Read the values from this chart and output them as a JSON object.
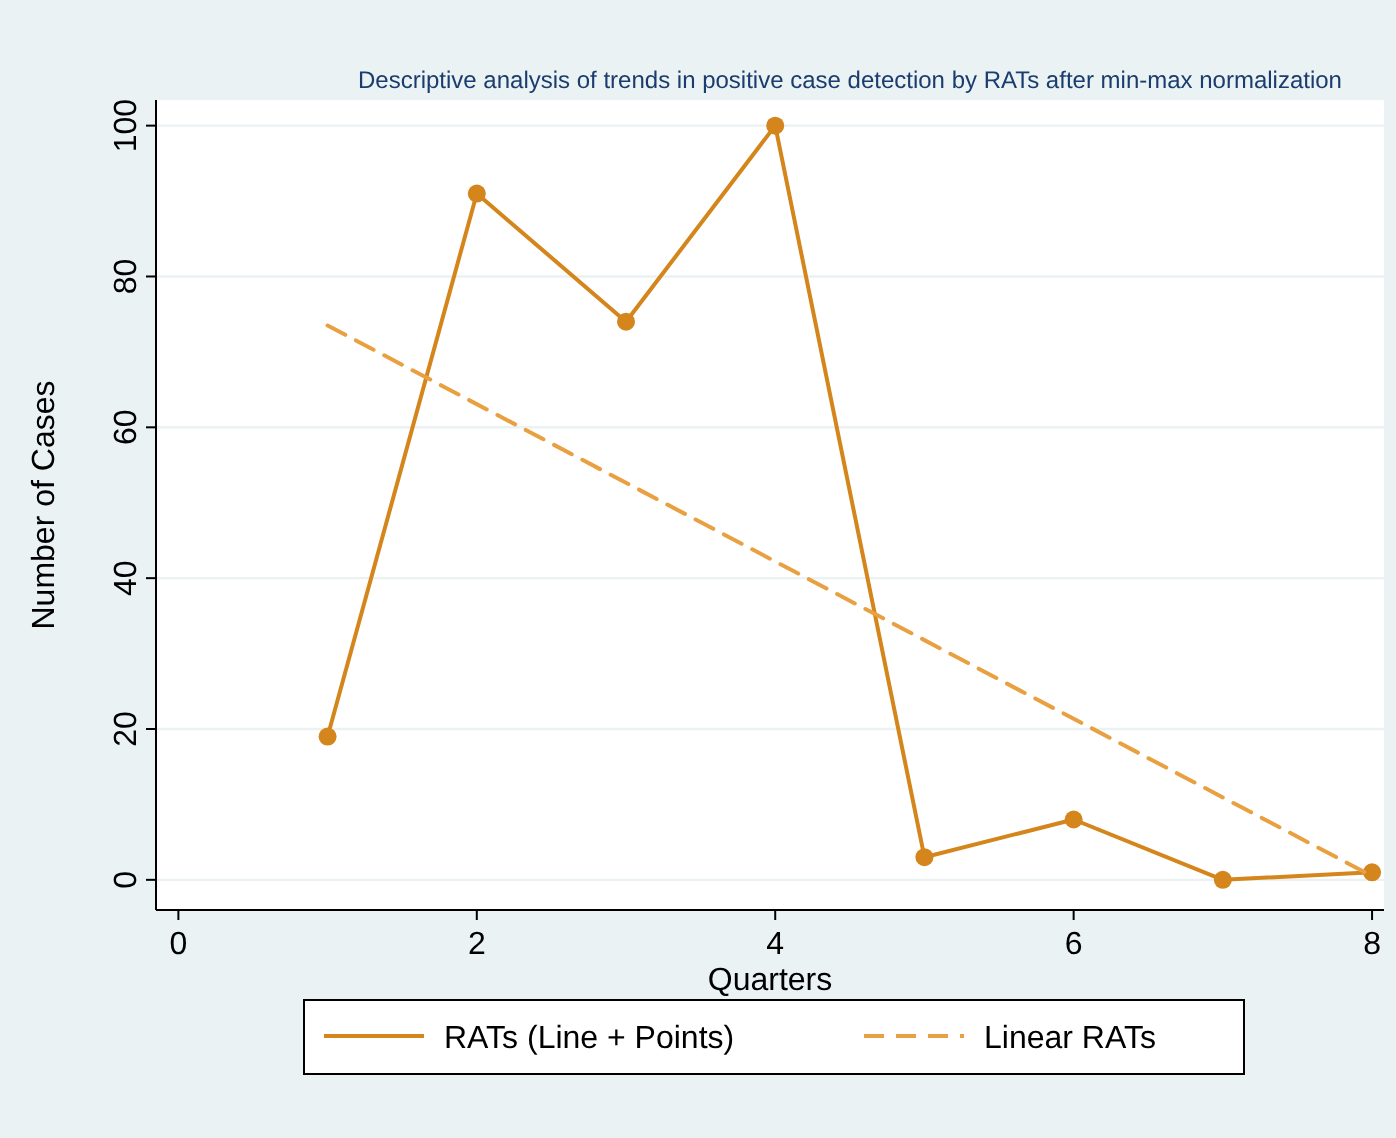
{
  "chart_data": {
    "type": "line",
    "title": "Descriptive analysis of trends in positive case detection by RATs after min-max normalization",
    "xlabel": "Quarters",
    "ylabel": "Number of Cases",
    "x": [
      1,
      2,
      3,
      4,
      5,
      6,
      7,
      8
    ],
    "series": [
      {
        "name": "RATs (Line + Points)",
        "color": "#d4861c",
        "values": [
          19,
          91,
          74,
          100,
          3,
          8,
          0,
          1
        ],
        "marker": "circle",
        "line_style": "solid"
      },
      {
        "name": "Linear RATs",
        "type": "line",
        "color": "#e8a040",
        "x": [
          1,
          8
        ],
        "values": [
          73.5,
          0.5
        ],
        "marker": "none",
        "line_style": "dashed"
      }
    ],
    "xlim": [
      -0.15,
      8.08
    ],
    "ylim": [
      -4,
      103.4
    ],
    "xticks": [
      0,
      2,
      4,
      6,
      8
    ],
    "yticks": [
      0,
      20,
      40,
      60,
      80,
      100
    ],
    "grid": "y",
    "legend": "bottom"
  }
}
